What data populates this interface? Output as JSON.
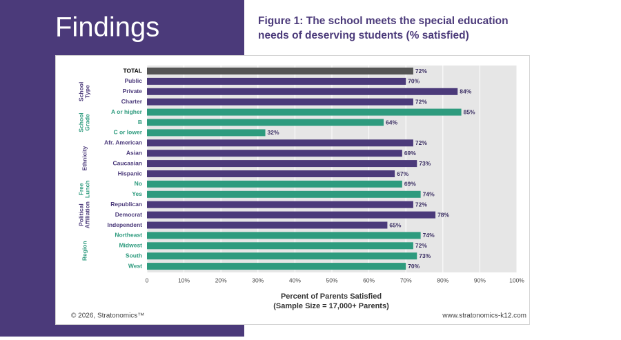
{
  "header": {
    "heading": "Findings"
  },
  "chart_data": {
    "type": "bar",
    "orientation": "horizontal",
    "title": [
      "Figure 1: The school meets the special education",
      "needs of deserving students (% satisfied)"
    ],
    "x_label": [
      "Percent of Parents Satisfied",
      "(Sample Size = 17,000+ Parents)"
    ],
    "categories": [
      "TOTAL",
      "Public",
      "Private",
      "Charter",
      "A or higher",
      "B",
      "C or lower",
      "Afr. American",
      "Asian",
      "Caucasian",
      "Hispanic",
      "No",
      "Yes",
      "Republican",
      "Democrat",
      "Independent",
      "Northeast",
      "Midwest",
      "South",
      "West"
    ],
    "values": [
      72,
      70,
      84,
      72,
      85,
      64,
      32,
      72,
      69,
      73,
      67,
      69,
      74,
      72,
      78,
      65,
      74,
      72,
      73,
      70
    ],
    "value_labels": [
      "72%",
      "70%",
      "84%",
      "72%",
      "85%",
      "64%",
      "32%",
      "72%",
      "69%",
      "73%",
      "67%",
      "69%",
      "74%",
      "72%",
      "78%",
      "65%",
      "74%",
      "72%",
      "73%",
      "70%"
    ],
    "total_color": "#555555",
    "groups": [
      {
        "name": "School Type",
        "color": "#4b3a7a",
        "categories": [
          "Public",
          "Private",
          "Charter"
        ]
      },
      {
        "name": "School Grade",
        "color": "#2e9b7e",
        "categories": [
          "A or higher",
          "B",
          "C or lower"
        ]
      },
      {
        "name": "Ethnicity",
        "color": "#4b3a7a",
        "categories": [
          "Afr. American",
          "Asian",
          "Caucasian",
          "Hispanic"
        ]
      },
      {
        "name": "Free Lunch",
        "color": "#2e9b7e",
        "categories": [
          "No",
          "Yes"
        ]
      },
      {
        "name": "Political Affiliation",
        "color": "#4b3a7a",
        "categories": [
          "Republican",
          "Democrat",
          "Independent"
        ]
      },
      {
        "name": "Region",
        "color": "#2e9b7e",
        "categories": [
          "Northeast",
          "Midwest",
          "South",
          "West"
        ]
      }
    ],
    "xlim": [
      0,
      100
    ],
    "xticks": [
      0,
      {
        "value": 10,
        "label": "10%"
      },
      {
        "value": 20,
        "label": "20%"
      },
      {
        "value": 30,
        "label": "30%"
      },
      {
        "value": 40,
        "label": "40%"
      },
      {
        "value": 50,
        "label": "50%"
      },
      {
        "value": 60,
        "label": "60%"
      },
      {
        "value": 70,
        "label": "70%"
      },
      {
        "value": 80,
        "label": "80%"
      },
      {
        "value": 90,
        "label": "90%"
      },
      {
        "value": 100,
        "label": "100%"
      }
    ]
  },
  "footer": {
    "copyright": "© 2026, Stratonomics™",
    "website": "www.stratonomics-k12.com"
  }
}
